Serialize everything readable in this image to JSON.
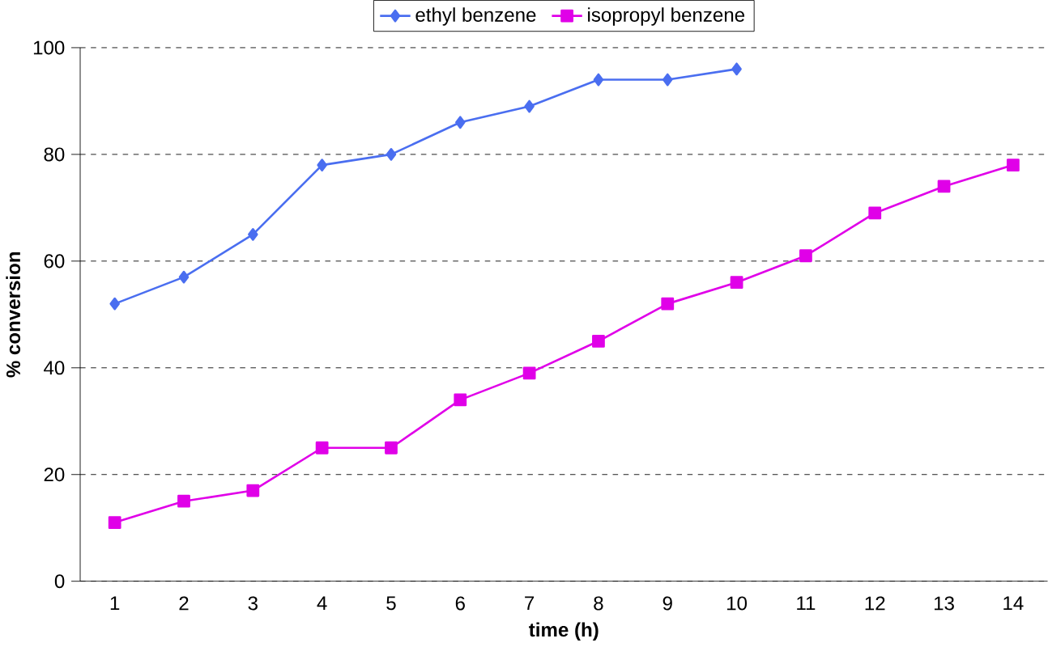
{
  "chart_data": {
    "type": "line",
    "xlabel": "time (h)",
    "ylabel": "% conversion",
    "categories": [
      "1",
      "2",
      "3",
      "4",
      "5",
      "6",
      "7",
      "8",
      "9",
      "10",
      "11",
      "12",
      "13",
      "14"
    ],
    "series": [
      {
        "name": "ethyl benzene",
        "color": "#4a6ef0",
        "marker": "diamond",
        "values": [
          52,
          57,
          65,
          78,
          80,
          86,
          89,
          94,
          94,
          96,
          null,
          null,
          null,
          null
        ]
      },
      {
        "name": "isopropyl benzene",
        "color": "#e000e8",
        "marker": "square",
        "values": [
          11,
          15,
          17,
          25,
          25,
          34,
          39,
          45,
          52,
          56,
          61,
          69,
          74,
          78
        ]
      }
    ],
    "ylim": [
      0,
      100
    ],
    "yticks": [
      0,
      20,
      40,
      60,
      80,
      100
    ],
    "grid": "y",
    "legend": "top"
  }
}
